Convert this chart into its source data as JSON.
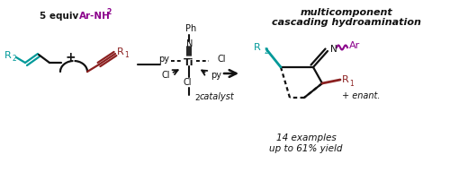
{
  "bg_color": "#ffffff",
  "colors": {
    "teal": "#009999",
    "purple": "#8B008B",
    "dark_red": "#8B2020",
    "black": "#111111"
  },
  "title1": "multicomponent",
  "title2": "cascading hydroamination",
  "examples1": "14 examples",
  "examples2": "up to 61% yield",
  "catalyst_label": "catalyst"
}
